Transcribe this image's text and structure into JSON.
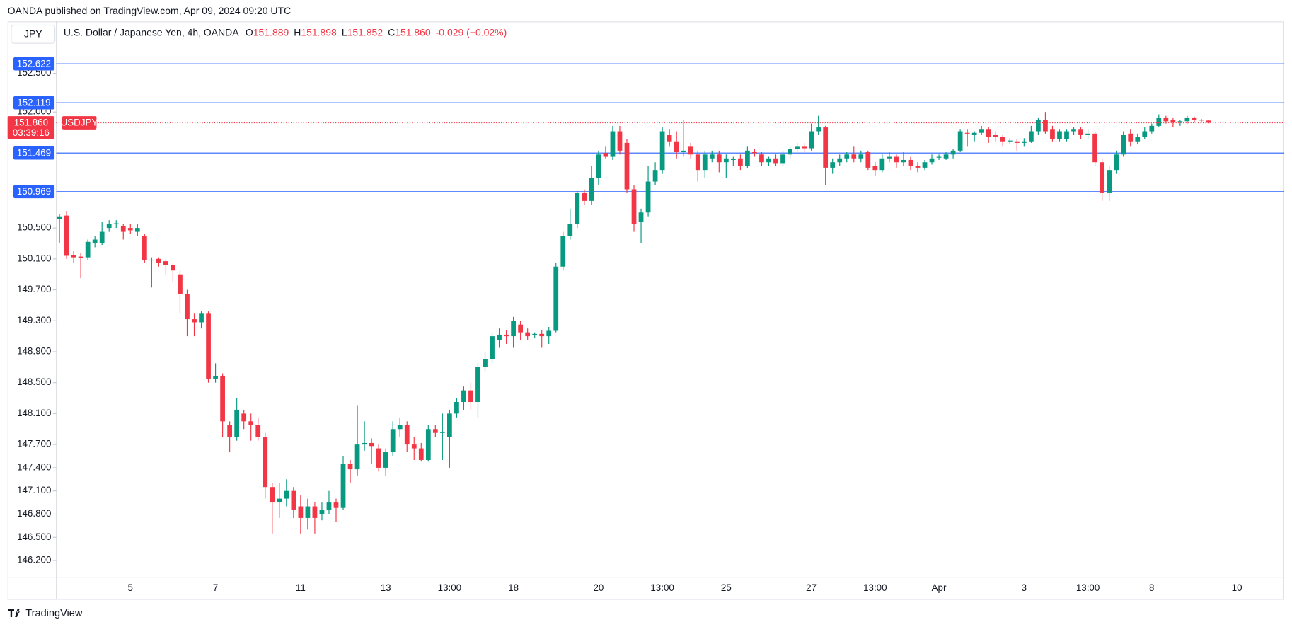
{
  "chart_data": {
    "type": "candlestick",
    "published": "OANDA published on TradingView.com, Apr 09, 2024 09:20 UTC",
    "currency": "JPY",
    "title": "U.S. Dollar / Japanese Yen, 4h, OANDA",
    "ohlc": [
      {
        "label": "O",
        "value": "151.889"
      },
      {
        "label": "H",
        "value": "151.898"
      },
      {
        "label": "L",
        "value": "151.852"
      },
      {
        "label": "C",
        "value": "151.860"
      }
    ],
    "change": "-0.029 (−0.02%)",
    "symbol": "USDJPY",
    "countdown": "03:39:16",
    "footer": "TradingView",
    "up_color": "#089981",
    "down_color": "#f23645",
    "level_color": "#2962ff",
    "ylim": [
      145.99,
      153.16
    ],
    "yticks": [
      {
        "value": 146.2,
        "label": "146.200"
      },
      {
        "value": 146.5,
        "label": "146.500"
      },
      {
        "value": 146.8,
        "label": "146.800"
      },
      {
        "value": 147.1,
        "label": "147.100"
      },
      {
        "value": 147.4,
        "label": "147.400"
      },
      {
        "value": 147.7,
        "label": "147.700"
      },
      {
        "value": 148.1,
        "label": "148.100"
      },
      {
        "value": 148.5,
        "label": "148.500"
      },
      {
        "value": 148.9,
        "label": "148.900"
      },
      {
        "value": 149.3,
        "label": "149.300"
      },
      {
        "value": 149.7,
        "label": "149.700"
      },
      {
        "value": 150.1,
        "label": "150.100"
      },
      {
        "value": 150.5,
        "label": "150.500"
      },
      {
        "value": 152.0,
        "label": "152.000"
      },
      {
        "value": 152.5,
        "label": "152.500"
      }
    ],
    "levels": [
      152.622,
      152.119,
      151.469,
      150.969
    ],
    "last_price": {
      "value": 151.86,
      "label": "151.860"
    },
    "categories": [
      null,
      null,
      null,
      null,
      null,
      null,
      null,
      null,
      null,
      null,
      "5",
      null,
      null,
      null,
      null,
      null,
      null,
      null,
      null,
      null,
      null,
      null,
      "7",
      null,
      null,
      null,
      null,
      null,
      null,
      null,
      null,
      null,
      null,
      null,
      "11",
      null,
      null,
      null,
      null,
      null,
      null,
      null,
      null,
      null,
      null,
      null,
      "13",
      null,
      null,
      null,
      null,
      null,
      null,
      null,
      null,
      "13:00",
      null,
      null,
      null,
      null,
      null,
      null,
      null,
      null,
      "18",
      null,
      null,
      null,
      null,
      null,
      null,
      null,
      null,
      null,
      null,
      null,
      "20",
      null,
      null,
      null,
      null,
      null,
      null,
      null,
      null,
      "13:00",
      null,
      null,
      null,
      null,
      null,
      null,
      null,
      null,
      "25",
      null,
      null,
      null,
      null,
      null,
      null,
      null,
      null,
      null,
      null,
      null,
      "27",
      null,
      null,
      null,
      null,
      null,
      null,
      null,
      null,
      "13:00",
      null,
      null,
      null,
      null,
      null,
      null,
      null,
      null,
      "Apr",
      null,
      null,
      null,
      null,
      null,
      null,
      null,
      null,
      null,
      null,
      null,
      "3",
      null,
      null,
      null,
      null,
      null,
      null,
      null,
      null,
      "13:00",
      null,
      null,
      null,
      null,
      null,
      null,
      null,
      null,
      "8",
      null,
      null,
      null,
      null,
      null,
      null,
      null,
      null,
      null,
      null,
      null,
      "10"
    ],
    "open": [
      150.62,
      150.66,
      150.15,
      150.13,
      150.12,
      150.3,
      150.3,
      150.5,
      150.55,
      150.52,
      150.5,
      150.45,
      150.4,
      150.08,
      150.1,
      150.07,
      150.02,
      149.9,
      149.65,
      149.32,
      149.28,
      149.4,
      148.55,
      148.58,
      147.95,
      147.8,
      148.1,
      148.0,
      147.95,
      147.8,
      147.15,
      146.95,
      147.0,
      147.1,
      146.9,
      146.75,
      146.9,
      146.8,
      146.85,
      146.95,
      146.88,
      147.45,
      147.38,
      147.7,
      147.72,
      147.65,
      147.4,
      147.6,
      147.9,
      147.95,
      147.7,
      147.65,
      147.5,
      147.9,
      147.85,
      147.8,
      148.1,
      148.25,
      148.4,
      148.25,
      148.7,
      148.8,
      149.05,
      149.12,
      149.1,
      149.25,
      149.15,
      149.12,
      149.13,
      149.1,
      149.17,
      150.0,
      150.4,
      150.55,
      150.95,
      150.85,
      151.15,
      151.47,
      151.42,
      151.75,
      151.6,
      151.0,
      150.58,
      150.7,
      151.1,
      151.25,
      151.7,
      151.62,
      151.48,
      151.55,
      151.45,
      151.25,
      151.4,
      151.45,
      151.35,
      151.38,
      151.4,
      151.3,
      151.48,
      151.45,
      151.35,
      151.4,
      151.33,
      151.45,
      151.52,
      151.55,
      151.53,
      151.75,
      151.8,
      151.28,
      151.35,
      151.4,
      151.45,
      151.4,
      151.48,
      151.3,
      151.25,
      151.4,
      151.42,
      151.35,
      151.38,
      151.3,
      151.28,
      151.35,
      151.41,
      151.4,
      151.45,
      151.5,
      151.73,
      151.7,
      151.73,
      151.78,
      151.7,
      151.68,
      151.62,
      151.62,
      151.6,
      151.62,
      151.75,
      151.9,
      151.78,
      151.65,
      151.65,
      151.75,
      151.78,
      151.7,
      151.72,
      151.35,
      150.95,
      151.25,
      151.45,
      151.72,
      151.62,
      151.68,
      151.75,
      151.82,
      151.92,
      151.9,
      151.87,
      151.88,
      151.92,
      151.9,
      151.889,
      null,
      null,
      null,
      null
    ],
    "high": [
      150.68,
      150.72,
      150.2,
      150.18,
      150.35,
      150.4,
      150.58,
      150.6,
      150.6,
      150.55,
      150.55,
      150.55,
      150.42,
      150.12,
      150.12,
      150.1,
      150.05,
      149.95,
      149.7,
      149.4,
      149.42,
      149.42,
      148.75,
      148.62,
      148.0,
      148.3,
      148.15,
      148.1,
      148.05,
      147.85,
      147.2,
      147.2,
      147.25,
      147.15,
      147.05,
      147.0,
      146.95,
      146.95,
      147.1,
      147.0,
      147.55,
      147.5,
      148.2,
      148.0,
      147.78,
      147.7,
      147.65,
      148.0,
      148.05,
      148.0,
      147.8,
      147.72,
      147.95,
      147.95,
      148.1,
      148.15,
      148.3,
      148.45,
      148.5,
      148.75,
      148.9,
      149.15,
      149.2,
      149.18,
      149.35,
      149.3,
      149.2,
      149.15,
      149.18,
      149.22,
      150.05,
      150.45,
      150.75,
      150.98,
      151.0,
      151.3,
      151.5,
      151.55,
      151.82,
      151.82,
      151.65,
      151.05,
      150.75,
      151.3,
      151.35,
      151.8,
      151.78,
      151.75,
      151.9,
      151.6,
      151.5,
      151.5,
      151.5,
      151.5,
      151.45,
      151.42,
      151.45,
      151.55,
      151.52,
      151.48,
      151.42,
      151.45,
      151.5,
      151.55,
      151.6,
      151.6,
      151.85,
      151.95,
      151.82,
      151.4,
      151.45,
      151.48,
      151.55,
      151.5,
      151.5,
      151.35,
      151.45,
      151.48,
      151.45,
      151.48,
      151.42,
      151.35,
      151.38,
      151.45,
      151.45,
      151.48,
      151.52,
      151.78,
      151.78,
      151.75,
      151.82,
      151.8,
      151.75,
      151.7,
      151.66,
      151.65,
      151.66,
      151.82,
      151.92,
      152.0,
      151.82,
      151.78,
      151.78,
      151.8,
      151.8,
      151.78,
      151.75,
      151.4,
      151.3,
      151.5,
      151.75,
      151.78,
      151.72,
      151.8,
      151.85,
      151.97,
      151.95,
      151.92,
      151.9,
      151.95,
      151.94,
      151.91,
      151.898,
      null,
      null,
      null,
      null
    ],
    "low": [
      150.3,
      150.1,
      150.05,
      149.85,
      150.08,
      150.25,
      150.28,
      150.45,
      150.5,
      150.35,
      150.42,
      150.4,
      150.05,
      149.73,
      150.0,
      149.9,
      149.8,
      149.4,
      149.1,
      149.1,
      149.2,
      148.5,
      148.5,
      147.8,
      147.6,
      147.75,
      147.9,
      147.75,
      147.75,
      147.0,
      146.55,
      146.75,
      146.9,
      146.75,
      146.55,
      146.6,
      146.55,
      146.72,
      146.8,
      146.7,
      146.85,
      147.2,
      147.3,
      147.62,
      147.45,
      147.35,
      147.3,
      147.55,
      147.8,
      147.6,
      147.5,
      147.48,
      147.48,
      147.8,
      147.5,
      147.4,
      148.05,
      148.15,
      148.15,
      148.05,
      148.65,
      148.75,
      148.95,
      149.0,
      148.95,
      149.05,
      149.05,
      149.08,
      148.95,
      149.0,
      149.15,
      149.95,
      150.35,
      150.5,
      150.8,
      150.8,
      151.05,
      151.4,
      151.38,
      151.45,
      150.95,
      150.45,
      150.3,
      150.65,
      151.05,
      151.2,
      151.55,
      151.4,
      151.42,
      151.4,
      151.1,
      151.15,
      151.35,
      151.22,
      151.15,
      151.3,
      151.25,
      151.28,
      151.42,
      151.3,
      151.3,
      151.3,
      151.3,
      151.4,
      151.48,
      151.48,
      151.5,
      151.7,
      151.05,
      151.2,
      151.3,
      151.35,
      151.35,
      151.35,
      151.25,
      151.18,
      151.22,
      151.35,
      151.28,
      151.3,
      151.25,
      151.22,
      151.25,
      151.32,
      151.38,
      151.38,
      151.4,
      151.48,
      151.55,
      151.62,
      151.7,
      151.6,
      151.62,
      151.55,
      151.58,
      151.5,
      151.55,
      151.6,
      151.7,
      151.72,
      151.62,
      151.62,
      151.62,
      151.7,
      151.65,
      151.65,
      151.3,
      150.85,
      150.85,
      151.2,
      151.42,
      151.55,
      151.58,
      151.65,
      151.72,
      151.8,
      151.85,
      151.8,
      151.82,
      151.85,
      151.86,
      151.86,
      151.852,
      null,
      null,
      null,
      null
    ],
    "close": [
      150.65,
      150.14,
      150.12,
      150.11,
      150.32,
      150.35,
      150.45,
      150.55,
      150.56,
      150.45,
      150.47,
      150.5,
      150.08,
      150.09,
      150.05,
      150.02,
      149.95,
      149.65,
      149.32,
      149.28,
      149.4,
      148.55,
      148.58,
      148.0,
      147.8,
      148.15,
      148.0,
      147.95,
      147.8,
      147.15,
      146.95,
      147.0,
      147.1,
      146.85,
      146.75,
      146.9,
      146.75,
      146.85,
      146.95,
      146.88,
      147.45,
      147.38,
      147.7,
      147.72,
      147.68,
      147.4,
      147.6,
      147.9,
      147.95,
      147.7,
      147.65,
      147.5,
      147.9,
      147.85,
      147.86,
      148.1,
      148.25,
      148.4,
      148.25,
      148.7,
      148.8,
      149.1,
      149.12,
      149.1,
      149.3,
      149.15,
      149.1,
      149.13,
      149.1,
      149.17,
      150.0,
      150.4,
      150.55,
      150.95,
      150.85,
      151.15,
      151.45,
      151.42,
      151.75,
      151.5,
      151.0,
      150.55,
      150.7,
      151.1,
      151.25,
      151.75,
      151.62,
      151.48,
      151.5,
      151.45,
      151.25,
      151.45,
      151.45,
      151.35,
      151.4,
      151.39,
      151.3,
      151.5,
      151.47,
      151.35,
      151.4,
      151.33,
      151.45,
      151.52,
      151.55,
      151.53,
      151.75,
      151.8,
      151.28,
      151.35,
      151.4,
      151.45,
      151.4,
      151.45,
      151.28,
      151.25,
      151.4,
      151.42,
      151.35,
      151.38,
      151.3,
      151.28,
      151.35,
      151.4,
      151.42,
      151.45,
      151.5,
      151.75,
      151.72,
      151.73,
      151.78,
      151.68,
      151.68,
      151.62,
      151.63,
      151.6,
      151.62,
      151.75,
      151.9,
      151.75,
      151.65,
      151.75,
      151.75,
      151.78,
      151.7,
      151.72,
      151.35,
      150.95,
      151.25,
      151.45,
      151.7,
      151.62,
      151.68,
      151.75,
      151.82,
      151.92,
      151.88,
      151.87,
      151.88,
      151.92,
      151.9,
      151.89,
      151.86,
      null,
      null,
      null,
      null
    ]
  }
}
